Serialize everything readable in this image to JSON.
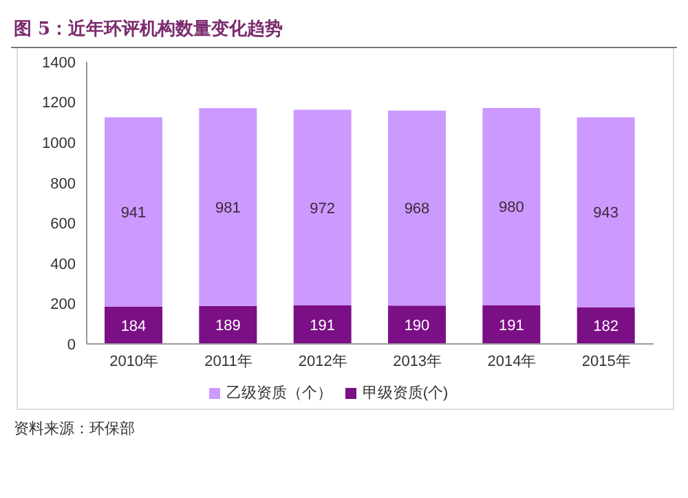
{
  "chart_data": {
    "type": "bar",
    "title": "图 5：近年环评机构数量变化趋势",
    "categories": [
      "2010年",
      "2011年",
      "2012年",
      "2013年",
      "2014年",
      "2015年"
    ],
    "stacked": true,
    "series": [
      {
        "name": "甲级资质(个)",
        "color": "#7b0f85",
        "values": [
          184,
          189,
          191,
          190,
          191,
          182
        ]
      },
      {
        "name": "乙级资质（个）",
        "color": "#cc99ff",
        "values": [
          941,
          981,
          972,
          968,
          980,
          943
        ]
      }
    ],
    "ylim": [
      0,
      1400
    ],
    "yticks": [
      0,
      200,
      400,
      600,
      800,
      1000,
      1200,
      1400
    ],
    "grid": false,
    "legend": "bottom",
    "data_labels": true,
    "annotations": [
      "资料来源：环保部"
    ]
  }
}
